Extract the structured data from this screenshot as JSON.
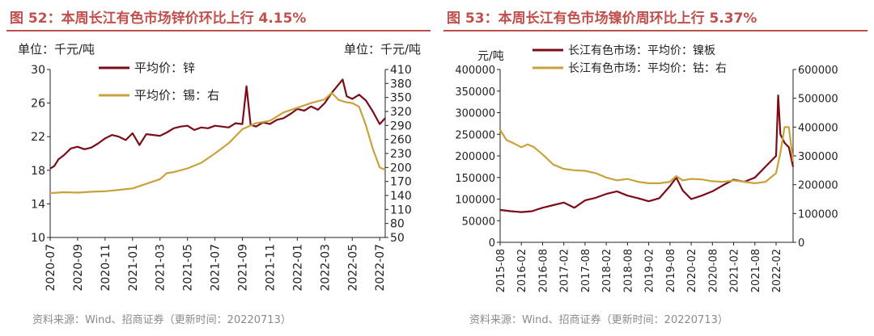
{
  "panels": [
    {
      "title": "图 52：本周长江有色市场锌价环比上行 4.15%",
      "source": "资料来源：Wind、招商证券（更新时间：20220713）"
    },
    {
      "title": "图 53：本周长江有色市场镍价周环比上行 5.37%",
      "source": "资料来源：Wind、招商证券（更新时间：20220713）"
    }
  ],
  "chart_data": [
    {
      "type": "line",
      "left_unit": "单位：千元/吨",
      "right_unit": "单位：千元/吨",
      "y_ticks": [
        "30",
        "26",
        "22",
        "18",
        "14",
        "10"
      ],
      "ylim": [
        10,
        30
      ],
      "y2_ticks": [
        "410",
        "380",
        "350",
        "320",
        "290",
        "260",
        "230",
        "200",
        "170",
        "140",
        "110",
        "80",
        "50"
      ],
      "y2lim": [
        50,
        410
      ],
      "x_ticks": [
        "2020-07",
        "2020-09",
        "2020-11",
        "2021-01",
        "2021-03",
        "2021-05",
        "2021-07",
        "2021-09",
        "2021-11",
        "2022-01",
        "2022-03",
        "2022-05",
        "2022-07"
      ],
      "x_range": [
        0,
        24.4
      ],
      "series": [
        {
          "name": "平均价：锌",
          "axis": "left",
          "color": "#7b0c17",
          "x": [
            0,
            0.3,
            0.6,
            1,
            1.5,
            2,
            2.5,
            3,
            3.5,
            4,
            4.5,
            5,
            5.5,
            6,
            6.5,
            7,
            7.5,
            8,
            8.5,
            9,
            9.5,
            10,
            10.5,
            11,
            11.5,
            12,
            12.5,
            13,
            13.5,
            14,
            14.3,
            14.6,
            15,
            15.5,
            16,
            16.5,
            17,
            17.5,
            18,
            18.5,
            19,
            19.5,
            20,
            20.5,
            21,
            21.3,
            21.6,
            22,
            22.5,
            23,
            23.5,
            24,
            24.4
          ],
          "values": [
            18.2,
            18.5,
            19.3,
            19.8,
            20.6,
            20.8,
            20.5,
            20.7,
            21.2,
            21.8,
            22.2,
            22.0,
            21.6,
            22.4,
            21.0,
            22.3,
            22.2,
            22.1,
            22.5,
            23.0,
            23.2,
            23.3,
            22.8,
            23.1,
            23.0,
            23.3,
            23.2,
            23.1,
            23.6,
            23.5,
            28.0,
            23.4,
            23.2,
            23.7,
            23.5,
            24.0,
            24.2,
            24.7,
            25.3,
            25.1,
            25.6,
            25.2,
            26.0,
            27.2,
            28.2,
            28.8,
            26.8,
            26.5,
            27.0,
            26.3,
            25.0,
            23.5,
            24.2
          ]
        },
        {
          "name": "平均价：锡：右",
          "axis": "right",
          "color": "#c8a33c",
          "x": [
            0,
            1,
            2,
            3,
            4,
            5,
            6,
            7,
            8,
            8.5,
            9,
            10,
            11,
            12,
            13,
            14,
            15,
            16,
            17,
            18,
            19,
            20,
            20.5,
            21,
            21.5,
            22,
            22.5,
            23,
            23.5,
            24,
            24.4
          ],
          "values": [
            145,
            147,
            146,
            148,
            149,
            152,
            155,
            165,
            175,
            188,
            190,
            198,
            210,
            230,
            252,
            282,
            295,
            300,
            318,
            328,
            338,
            346,
            360,
            345,
            340,
            338,
            330,
            290,
            240,
            200,
            195
          ]
        }
      ]
    },
    {
      "type": "line",
      "left_unit": "元/吨",
      "y_ticks": [
        "400000",
        "350000",
        "300000",
        "250000",
        "200000",
        "150000",
        "100000",
        "50000",
        "0"
      ],
      "ylim": [
        0,
        400000
      ],
      "y2_ticks": [
        "600000",
        "500000",
        "400000",
        "300000",
        "200000",
        "100000",
        "0"
      ],
      "y2lim": [
        0,
        600000
      ],
      "x_ticks": [
        "2015-08",
        "2016-02",
        "2016-08",
        "2017-02",
        "2017-08",
        "2018-02",
        "2018-08",
        "2019-02",
        "2019-08",
        "2020-02",
        "2020-08",
        "2021-02",
        "2021-08",
        "2022-02"
      ],
      "x_range": [
        0,
        13.8
      ],
      "series": [
        {
          "name": "长江有色市场：平均价：镍板",
          "axis": "left",
          "color": "#7b0c17",
          "x": [
            0,
            0.5,
            1,
            1.5,
            2,
            2.5,
            3,
            3.5,
            4,
            4.5,
            5,
            5.5,
            6,
            6.5,
            7,
            7.5,
            8,
            8.3,
            8.6,
            9,
            9.5,
            10,
            10.5,
            11,
            11.5,
            12,
            12.5,
            13,
            13.1,
            13.2,
            13.4,
            13.6,
            13.8
          ],
          "values": [
            75000,
            72000,
            70000,
            72000,
            80000,
            86000,
            92000,
            80000,
            97000,
            103000,
            112000,
            118000,
            108000,
            102000,
            95000,
            102000,
            130000,
            150000,
            120000,
            100000,
            108000,
            118000,
            132000,
            145000,
            140000,
            150000,
            175000,
            200000,
            340000,
            250000,
            230000,
            220000,
            175000
          ]
        },
        {
          "name": "长江有色市场：平均价：钴：右",
          "axis": "right",
          "color": "#c8a33c",
          "x": [
            0,
            0.3,
            0.6,
            1,
            1.3,
            1.6,
            2,
            2.5,
            3,
            3.5,
            4,
            4.5,
            5,
            5.5,
            6,
            6.5,
            7,
            7.5,
            8,
            8.3,
            8.6,
            9,
            9.5,
            10,
            10.5,
            11,
            11.5,
            12,
            12.5,
            13,
            13.2,
            13.4,
            13.6,
            13.8
          ],
          "values": [
            390000,
            355000,
            345000,
            330000,
            340000,
            330000,
            305000,
            270000,
            255000,
            250000,
            248000,
            240000,
            225000,
            215000,
            220000,
            210000,
            205000,
            205000,
            210000,
            230000,
            215000,
            220000,
            218000,
            212000,
            210000,
            215000,
            210000,
            205000,
            210000,
            240000,
            310000,
            400000,
            400000,
            280000
          ]
        }
      ]
    }
  ]
}
